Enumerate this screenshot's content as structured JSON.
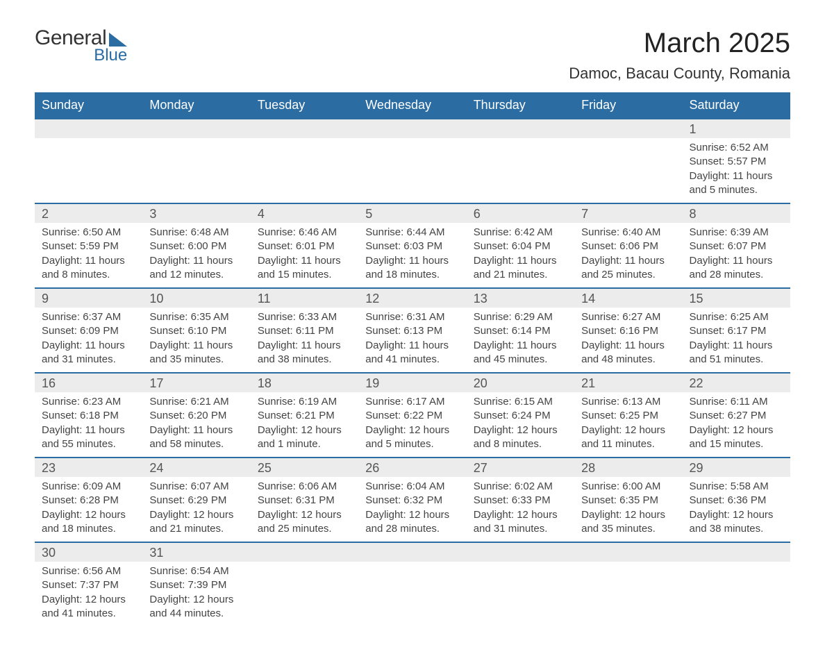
{
  "logo": {
    "word1": "General",
    "word2": "Blue"
  },
  "title": "March 2025",
  "location": "Damoc, Bacau County, Romania",
  "colors": {
    "header_bg": "#2b6ca3",
    "header_text": "#ffffff",
    "daynum_bg": "#ececec",
    "border": "#2b6ca3",
    "text": "#444444"
  },
  "weekdays": [
    "Sunday",
    "Monday",
    "Tuesday",
    "Wednesday",
    "Thursday",
    "Friday",
    "Saturday"
  ],
  "weeks": [
    [
      null,
      null,
      null,
      null,
      null,
      null,
      {
        "n": "1",
        "sr": "6:52 AM",
        "ss": "5:57 PM",
        "dl": "11 hours and 5 minutes."
      }
    ],
    [
      {
        "n": "2",
        "sr": "6:50 AM",
        "ss": "5:59 PM",
        "dl": "11 hours and 8 minutes."
      },
      {
        "n": "3",
        "sr": "6:48 AM",
        "ss": "6:00 PM",
        "dl": "11 hours and 12 minutes."
      },
      {
        "n": "4",
        "sr": "6:46 AM",
        "ss": "6:01 PM",
        "dl": "11 hours and 15 minutes."
      },
      {
        "n": "5",
        "sr": "6:44 AM",
        "ss": "6:03 PM",
        "dl": "11 hours and 18 minutes."
      },
      {
        "n": "6",
        "sr": "6:42 AM",
        "ss": "6:04 PM",
        "dl": "11 hours and 21 minutes."
      },
      {
        "n": "7",
        "sr": "6:40 AM",
        "ss": "6:06 PM",
        "dl": "11 hours and 25 minutes."
      },
      {
        "n": "8",
        "sr": "6:39 AM",
        "ss": "6:07 PM",
        "dl": "11 hours and 28 minutes."
      }
    ],
    [
      {
        "n": "9",
        "sr": "6:37 AM",
        "ss": "6:09 PM",
        "dl": "11 hours and 31 minutes."
      },
      {
        "n": "10",
        "sr": "6:35 AM",
        "ss": "6:10 PM",
        "dl": "11 hours and 35 minutes."
      },
      {
        "n": "11",
        "sr": "6:33 AM",
        "ss": "6:11 PM",
        "dl": "11 hours and 38 minutes."
      },
      {
        "n": "12",
        "sr": "6:31 AM",
        "ss": "6:13 PM",
        "dl": "11 hours and 41 minutes."
      },
      {
        "n": "13",
        "sr": "6:29 AM",
        "ss": "6:14 PM",
        "dl": "11 hours and 45 minutes."
      },
      {
        "n": "14",
        "sr": "6:27 AM",
        "ss": "6:16 PM",
        "dl": "11 hours and 48 minutes."
      },
      {
        "n": "15",
        "sr": "6:25 AM",
        "ss": "6:17 PM",
        "dl": "11 hours and 51 minutes."
      }
    ],
    [
      {
        "n": "16",
        "sr": "6:23 AM",
        "ss": "6:18 PM",
        "dl": "11 hours and 55 minutes."
      },
      {
        "n": "17",
        "sr": "6:21 AM",
        "ss": "6:20 PM",
        "dl": "11 hours and 58 minutes."
      },
      {
        "n": "18",
        "sr": "6:19 AM",
        "ss": "6:21 PM",
        "dl": "12 hours and 1 minute."
      },
      {
        "n": "19",
        "sr": "6:17 AM",
        "ss": "6:22 PM",
        "dl": "12 hours and 5 minutes."
      },
      {
        "n": "20",
        "sr": "6:15 AM",
        "ss": "6:24 PM",
        "dl": "12 hours and 8 minutes."
      },
      {
        "n": "21",
        "sr": "6:13 AM",
        "ss": "6:25 PM",
        "dl": "12 hours and 11 minutes."
      },
      {
        "n": "22",
        "sr": "6:11 AM",
        "ss": "6:27 PM",
        "dl": "12 hours and 15 minutes."
      }
    ],
    [
      {
        "n": "23",
        "sr": "6:09 AM",
        "ss": "6:28 PM",
        "dl": "12 hours and 18 minutes."
      },
      {
        "n": "24",
        "sr": "6:07 AM",
        "ss": "6:29 PM",
        "dl": "12 hours and 21 minutes."
      },
      {
        "n": "25",
        "sr": "6:06 AM",
        "ss": "6:31 PM",
        "dl": "12 hours and 25 minutes."
      },
      {
        "n": "26",
        "sr": "6:04 AM",
        "ss": "6:32 PM",
        "dl": "12 hours and 28 minutes."
      },
      {
        "n": "27",
        "sr": "6:02 AM",
        "ss": "6:33 PM",
        "dl": "12 hours and 31 minutes."
      },
      {
        "n": "28",
        "sr": "6:00 AM",
        "ss": "6:35 PM",
        "dl": "12 hours and 35 minutes."
      },
      {
        "n": "29",
        "sr": "5:58 AM",
        "ss": "6:36 PM",
        "dl": "12 hours and 38 minutes."
      }
    ],
    [
      {
        "n": "30",
        "sr": "6:56 AM",
        "ss": "7:37 PM",
        "dl": "12 hours and 41 minutes."
      },
      {
        "n": "31",
        "sr": "6:54 AM",
        "ss": "7:39 PM",
        "dl": "12 hours and 44 minutes."
      },
      null,
      null,
      null,
      null,
      null
    ]
  ],
  "labels": {
    "sunrise": "Sunrise: ",
    "sunset": "Sunset: ",
    "daylight": "Daylight: "
  }
}
